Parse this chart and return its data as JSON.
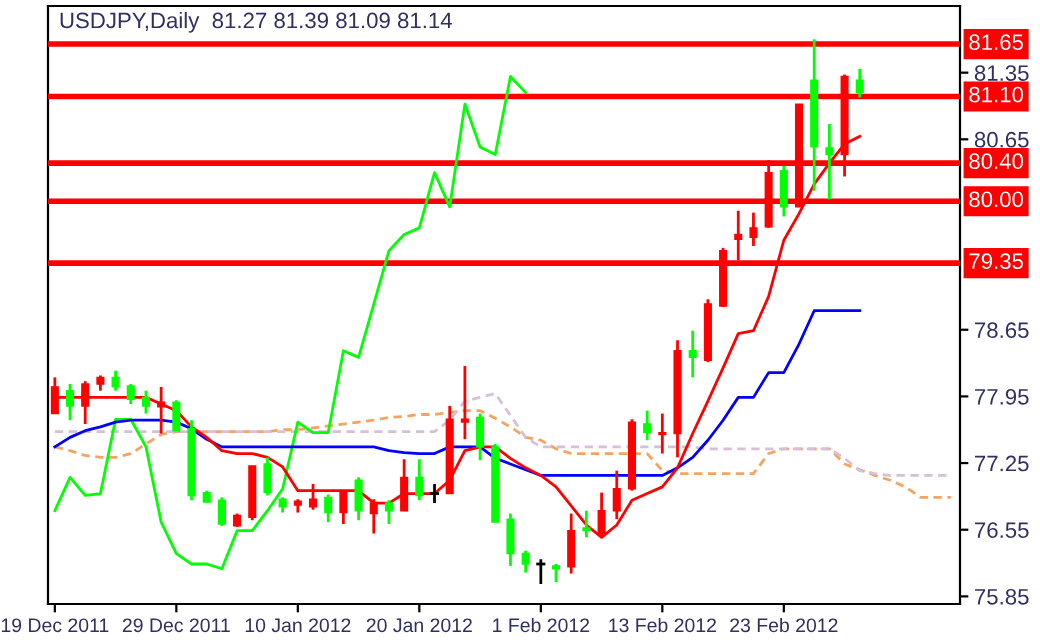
{
  "chart_data": {
    "type": "candlestick",
    "title": "USDJPY,Daily  81.27 81.39 81.09 81.14",
    "categories": [
      "19 Dec 2011",
      null,
      null,
      null,
      null,
      null,
      null,
      null,
      "29 Dec 2011",
      null,
      null,
      null,
      null,
      null,
      null,
      null,
      "10 Jan 2012",
      null,
      null,
      null,
      null,
      null,
      null,
      null,
      "20 Jan 2012",
      null,
      null,
      null,
      null,
      null,
      null,
      null,
      "1 Feb 2012",
      null,
      null,
      null,
      null,
      null,
      null,
      null,
      "13 Feb 2012",
      null,
      null,
      null,
      null,
      null,
      null,
      null,
      "23 Feb 2012",
      null,
      null,
      null,
      null,
      null,
      null,
      null,
      null,
      null,
      null,
      null
    ],
    "ohlc": [
      [
        77.77,
        78.15,
        77.77,
        78.05
      ],
      [
        78.01,
        78.08,
        77.7,
        77.85
      ],
      [
        77.85,
        78.11,
        77.66,
        78.08
      ],
      [
        78.08,
        78.17,
        78.01,
        78.15
      ],
      [
        78.15,
        78.22,
        78.01,
        78.05
      ],
      [
        78.06,
        78.08,
        77.87,
        77.92
      ],
      [
        77.94,
        78.01,
        77.77,
        77.85
      ],
      [
        77.84,
        78.05,
        77.56,
        77.89
      ],
      [
        77.89,
        77.91,
        77.59,
        77.59
      ],
      [
        77.61,
        77.7,
        76.86,
        76.91
      ],
      [
        76.94,
        76.96,
        76.84,
        76.84
      ],
      [
        76.86,
        76.89,
        76.59,
        76.61
      ],
      [
        76.59,
        76.72,
        76.58,
        76.7
      ],
      [
        76.68,
        77.22,
        76.65,
        77.22
      ],
      [
        77.24,
        77.31,
        76.91,
        76.94
      ],
      [
        76.87,
        76.89,
        76.73,
        76.79
      ],
      [
        76.81,
        76.87,
        76.73,
        76.85
      ],
      [
        76.79,
        77.03,
        76.76,
        76.87
      ],
      [
        76.89,
        76.92,
        76.63,
        76.73
      ],
      [
        76.73,
        76.96,
        76.61,
        76.94
      ],
      [
        77.07,
        77.1,
        76.65,
        76.75
      ],
      [
        76.72,
        76.87,
        76.51,
        76.83
      ],
      [
        76.83,
        76.86,
        76.61,
        76.75
      ],
      [
        76.75,
        77.29,
        76.75,
        77.1
      ],
      [
        77.1,
        77.29,
        76.86,
        76.91
      ],
      [
        76.93,
        77.03,
        76.83,
        76.93
      ],
      [
        76.93,
        77.85,
        76.93,
        77.71
      ],
      [
        77.68,
        78.27,
        77.5,
        77.71
      ],
      [
        77.73,
        77.77,
        77.28,
        77.42
      ],
      [
        77.42,
        77.45,
        76.63,
        76.63
      ],
      [
        76.66,
        76.72,
        76.17,
        76.3
      ],
      [
        76.3,
        76.33,
        76.1,
        76.19
      ],
      [
        76.19,
        76.24,
        75.98,
        76.19
      ],
      [
        76.17,
        76.19,
        76.0,
        76.14
      ],
      [
        76.16,
        76.72,
        76.09,
        76.54
      ],
      [
        76.57,
        76.75,
        76.47,
        76.54
      ],
      [
        76.51,
        76.94,
        76.47,
        76.75
      ],
      [
        76.75,
        77.17,
        76.66,
        76.98
      ],
      [
        76.98,
        77.71,
        76.96,
        77.68
      ],
      [
        77.66,
        77.8,
        77.49,
        77.57
      ],
      [
        77.55,
        77.77,
        77.35,
        77.57
      ],
      [
        77.56,
        78.54,
        77.31,
        78.43
      ],
      [
        78.43,
        78.64,
        78.15,
        78.36
      ],
      [
        78.33,
        78.97,
        78.31,
        78.92
      ],
      [
        78.9,
        79.51,
        78.89,
        79.48
      ],
      [
        79.6,
        79.9,
        79.38,
        79.65
      ],
      [
        79.62,
        79.88,
        79.53,
        79.72
      ],
      [
        79.73,
        80.43,
        79.72,
        80.3
      ],
      [
        80.32,
        80.37,
        79.84,
        79.94
      ],
      [
        79.94,
        81.02,
        79.94,
        81.02
      ],
      [
        81.27,
        81.7,
        80.11,
        80.57
      ],
      [
        80.56,
        80.81,
        80.02,
        80.49
      ],
      [
        80.49,
        81.33,
        80.26,
        81.31
      ],
      [
        81.27,
        81.39,
        81.09,
        81.14
      ],
      null,
      null,
      null,
      null,
      null,
      null
    ],
    "colors": [
      "#ff0000",
      "#00ff00",
      "#ff0000",
      "#ff0000",
      "#00ff00",
      "#00ff00",
      "#00ff00",
      "#ff0000",
      "#00ff00",
      "#00ff00",
      "#00ff00",
      "#00ff00",
      "#ff0000",
      "#ff0000",
      "#00ff00",
      "#00ff00",
      "#ff0000",
      "#ff0000",
      "#00ff00",
      "#ff0000",
      "#00ff00",
      "#ff0000",
      "#00ff00",
      "#ff0000",
      "#00ff00",
      "#000000",
      "#ff0000",
      "#ff0000",
      "#00ff00",
      "#00ff00",
      "#00ff00",
      "#00ff00",
      "#000000",
      "#00ff00",
      "#ff0000",
      "#00ff00",
      "#ff0000",
      "#ff0000",
      "#ff0000",
      "#00ff00",
      "#ff0000",
      "#ff0000",
      "#00ff00",
      "#ff0000",
      "#ff0000",
      "#ff0000",
      "#ff0000",
      "#ff0000",
      "#00ff00",
      "#ff0000",
      "#00ff00",
      "#00ff00",
      "#ff0000",
      "#00ff00",
      null,
      null,
      null,
      null,
      null,
      null
    ],
    "series": [
      {
        "type": "line",
        "color": "#f4a460",
        "line_style": "dashed",
        "values": [
          77.42,
          77.38,
          77.33,
          77.31,
          77.31,
          77.35,
          77.45,
          77.55,
          77.58,
          null,
          77.58,
          77.58,
          77.58,
          77.58,
          77.58,
          77.6,
          77.6,
          77.62,
          77.64,
          77.66,
          77.68,
          77.7,
          77.73,
          77.74,
          77.76,
          77.76,
          77.78,
          77.8,
          77.8,
          77.72,
          77.63,
          77.52,
          77.49,
          77.4,
          77.35,
          77.35,
          77.35,
          77.35,
          77.35,
          77.35,
          77.17,
          77.14,
          77.14,
          77.14,
          77.14,
          77.14,
          77.14,
          77.35,
          77.4,
          77.4,
          77.4,
          77.4,
          77.24,
          77.18,
          77.12,
          77.07,
          77.0,
          76.89,
          76.89,
          76.89
        ]
      },
      {
        "type": "line",
        "color": "#d8bfd8",
        "line_style": "dashed",
        "values": [
          77.58,
          77.58,
          77.58,
          77.58,
          77.58,
          77.58,
          77.58,
          77.58,
          77.58,
          77.58,
          77.58,
          77.58,
          77.58,
          77.58,
          77.58,
          77.58,
          77.58,
          77.58,
          77.58,
          77.58,
          77.58,
          77.58,
          77.58,
          77.58,
          77.58,
          77.58,
          77.7,
          77.9,
          77.94,
          77.98,
          77.75,
          77.52,
          77.42,
          77.42,
          77.42,
          77.42,
          77.42,
          77.42,
          77.42,
          77.42,
          77.42,
          77.42,
          77.42,
          77.4,
          77.4,
          77.4,
          77.4,
          77.4,
          77.4,
          77.4,
          77.4,
          77.4,
          77.3,
          77.17,
          77.14,
          77.12,
          77.12,
          77.12,
          77.12,
          77.12
        ]
      },
      {
        "type": "line",
        "color": "#00ff00",
        "values": [
          76.75,
          77.1,
          76.91,
          76.93,
          77.71,
          77.71,
          77.42,
          76.63,
          76.3,
          76.19,
          76.19,
          76.14,
          76.54,
          76.54,
          76.75,
          76.98,
          77.68,
          77.57,
          77.57,
          78.43,
          78.36,
          78.92,
          79.48,
          79.65,
          79.72,
          80.3,
          79.94,
          81.02,
          80.57,
          80.49,
          81.31,
          81.14,
          null,
          null,
          null,
          null,
          null,
          null,
          null,
          null,
          null,
          null,
          null,
          null,
          null,
          null,
          null,
          null,
          null,
          null,
          null,
          null,
          null,
          null,
          null,
          null,
          null,
          null,
          null,
          null
        ]
      },
      {
        "type": "line",
        "color": "#0000ff",
        "values": [
          77.42,
          77.52,
          77.59,
          77.63,
          77.68,
          77.7,
          77.7,
          77.7,
          77.68,
          77.61,
          77.5,
          77.42,
          77.42,
          77.42,
          77.42,
          77.42,
          77.42,
          77.42,
          77.42,
          77.42,
          77.42,
          77.42,
          77.38,
          77.36,
          77.35,
          77.35,
          77.42,
          77.42,
          77.42,
          77.3,
          77.24,
          77.18,
          77.12,
          77.12,
          77.12,
          77.12,
          77.12,
          77.12,
          77.12,
          77.12,
          77.12,
          77.2,
          77.31,
          77.49,
          77.7,
          77.94,
          77.94,
          78.2,
          78.2,
          78.5,
          78.85,
          78.85,
          78.85,
          78.85,
          null,
          null,
          null,
          null,
          null,
          null
        ]
      },
      {
        "type": "line",
        "color": "#ff0000",
        "values": [
          77.94,
          77.94,
          77.94,
          77.94,
          77.94,
          77.94,
          77.94,
          77.87,
          77.8,
          77.63,
          77.52,
          77.38,
          77.35,
          77.35,
          77.31,
          77.21,
          76.96,
          76.96,
          76.96,
          76.96,
          76.96,
          76.83,
          76.83,
          76.93,
          76.93,
          76.93,
          77.07,
          77.38,
          77.42,
          77.42,
          77.3,
          77.2,
          77.12,
          77.0,
          76.8,
          76.6,
          76.47,
          76.6,
          76.86,
          76.93,
          77.0,
          77.2,
          77.56,
          77.9,
          78.25,
          78.61,
          78.64,
          79.0,
          79.59,
          79.87,
          80.18,
          80.4,
          80.6,
          80.68,
          null,
          null,
          null,
          null,
          null,
          null
        ]
      }
    ],
    "ref_lines": [
      {
        "axis": "y",
        "value": 81.65,
        "label": "81.65",
        "color": "#ff0000"
      },
      {
        "axis": "y",
        "value": 81.1,
        "label": "81.10",
        "color": "#ff0000"
      },
      {
        "axis": "y",
        "value": 80.4,
        "label": "80.40",
        "color": "#ff0000"
      },
      {
        "axis": "y",
        "value": 80.0,
        "label": "80.00",
        "color": "#ff0000"
      },
      {
        "axis": "y",
        "value": 79.35,
        "label": "79.35",
        "color": "#ff0000"
      }
    ],
    "ylim": [
      75.77,
      82.05
    ],
    "yticks": [
      75.85,
      76.55,
      77.25,
      77.95,
      78.65,
      80.65,
      81.35
    ],
    "grid": false,
    "legend": false
  }
}
